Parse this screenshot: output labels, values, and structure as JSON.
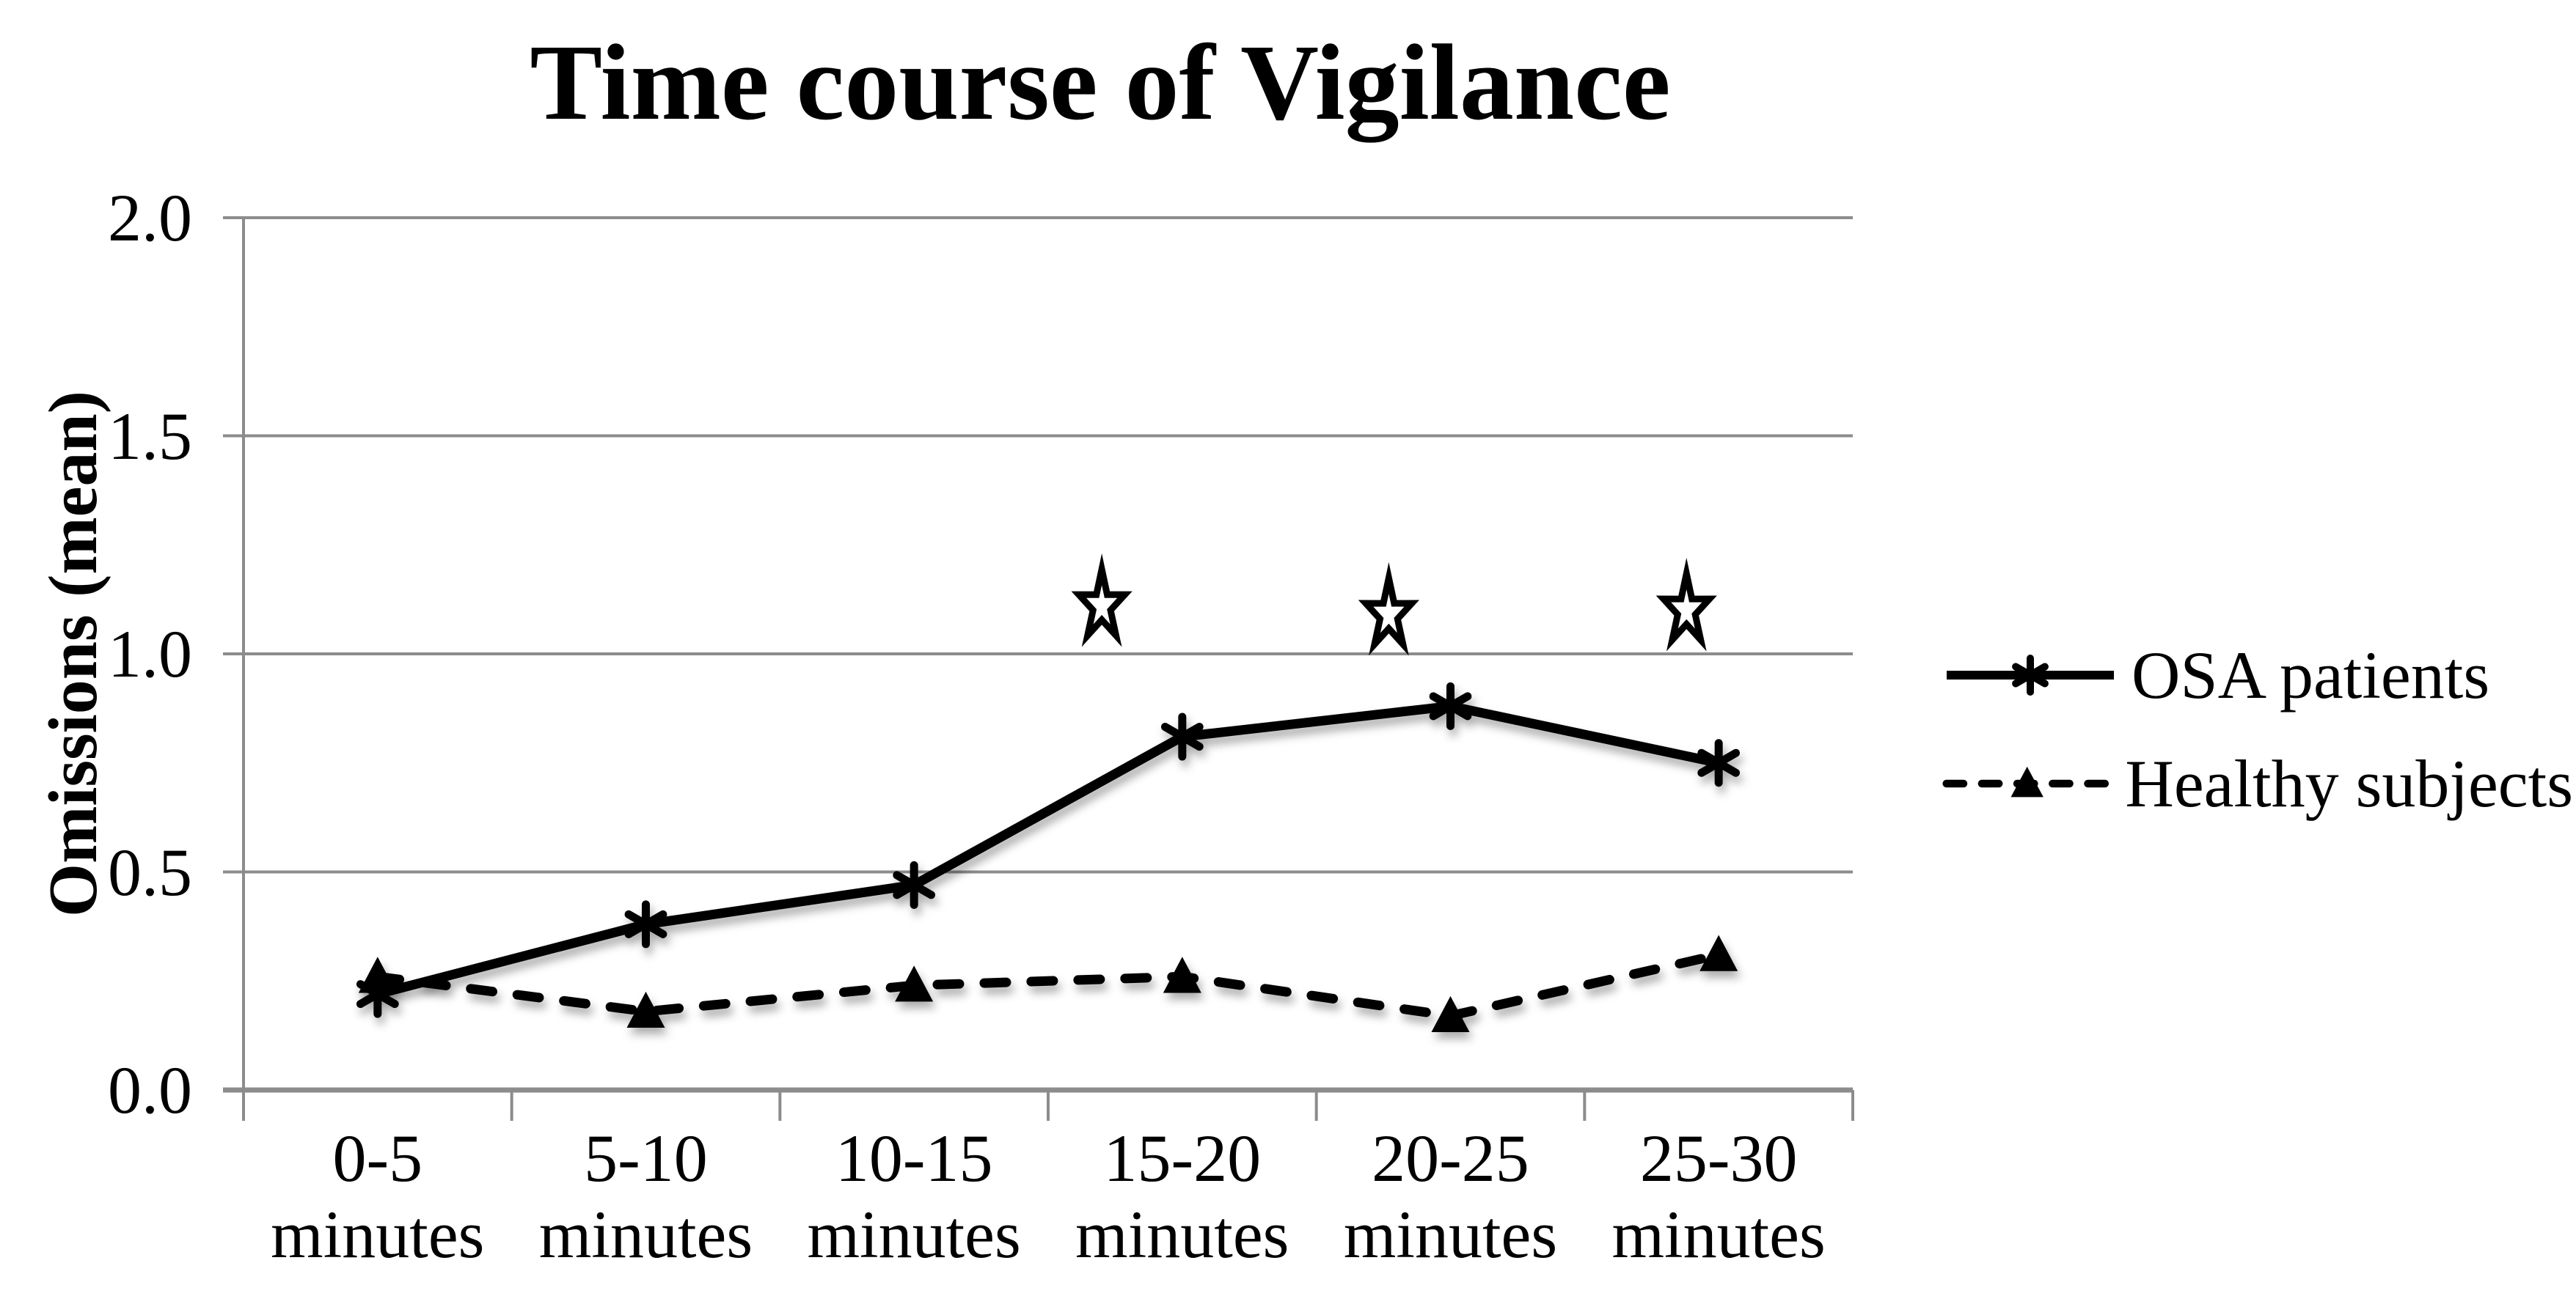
{
  "title": "Time course of Vigilance",
  "y_axis": {
    "label": "Omissions (mean)",
    "tick_labels": [
      "2.0",
      "1.5",
      "1.0",
      "0.5",
      "0.0"
    ]
  },
  "x_axis": {
    "category_lines": [
      {
        "top": "0-5",
        "bottom": "minutes"
      },
      {
        "top": "5-10",
        "bottom": "minutes"
      },
      {
        "top": "10-15",
        "bottom": "minutes"
      },
      {
        "top": "15-20",
        "bottom": "minutes"
      },
      {
        "top": "20-25",
        "bottom": "minutes"
      },
      {
        "top": "25-30",
        "bottom": "minutes"
      }
    ]
  },
  "legend": [
    {
      "label": "OSA patients",
      "marker": "asterisk",
      "line": "solid"
    },
    {
      "label": "Healthy subjects",
      "marker": "triangle-filled",
      "line": "dashed"
    }
  ],
  "chart_data": {
    "type": "line",
    "title": "Time course of Vigilance",
    "categories": [
      "0-5 minutes",
      "5-10 minutes",
      "10-15 minutes",
      "15-20 minutes",
      "20-25 minutes",
      "25-30 minutes"
    ],
    "series": [
      {
        "name": "OSA patients",
        "values": [
          0.22,
          0.38,
          0.47,
          0.81,
          0.88,
          0.75
        ],
        "line": "solid",
        "marker": "asterisk",
        "color": "#000000"
      },
      {
        "name": "Healthy subjects",
        "values": [
          0.26,
          0.18,
          0.24,
          0.26,
          0.17,
          0.31
        ],
        "line": "dashed",
        "marker": "triangle-filled",
        "color": "#000000"
      }
    ],
    "xlabel": "",
    "ylabel": "Omissions (mean)",
    "ylim": [
      0.0,
      2.0
    ],
    "ytick_step": 0.5,
    "grid": "horizontal",
    "legend_position": "right",
    "annotations": {
      "symbol": "open-star",
      "meaning": "significance-marker",
      "significance_stars": [
        {
          "x": 2.7,
          "y": 1.11
        },
        {
          "x": 3.77,
          "y": 1.09
        },
        {
          "x": 4.88,
          "y": 1.1
        }
      ]
    }
  },
  "colors": {
    "axis": "#8C8C8C",
    "grid": "#8C8C8C",
    "series": "#000000",
    "star_fill": "#FFFFFF",
    "background": "#FFFFFF",
    "text": "#000000"
  }
}
